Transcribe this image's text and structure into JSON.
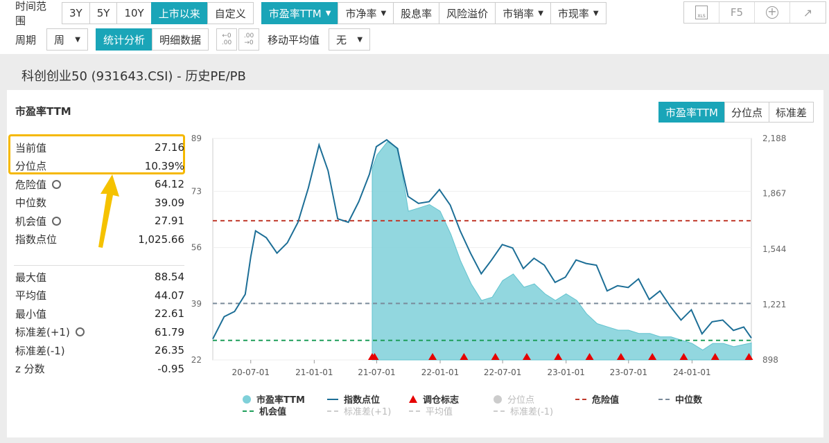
{
  "toolbar": {
    "range_label": "时间范围",
    "range_options": [
      "3Y",
      "5Y",
      "10Y",
      "上市以来",
      "自定义"
    ],
    "metrics": [
      "市盈率TTM",
      "市净率",
      "股息率",
      "风险溢价",
      "市销率",
      "市现率"
    ],
    "period_label": "周期",
    "period_value": "周",
    "view_tabs": [
      "统计分析",
      "明细数据"
    ],
    "ma_label": "移动平均值",
    "ma_value": "无",
    "tools": {
      "f5": "F5",
      "xls": "XLS"
    }
  },
  "page_title": "科创创业50 (931643.CSI) - 历史PE/PB",
  "panel": {
    "title": "市盈率TTM",
    "seg_tabs": [
      "市盈率TTM",
      "分位点",
      "标准差"
    ]
  },
  "stats_top": [
    {
      "label": "当前值",
      "value": "27.16",
      "gear": false
    },
    {
      "label": "分位点",
      "value": "10.39%",
      "gear": false
    },
    {
      "label": "危险值",
      "value": "64.12",
      "gear": true
    },
    {
      "label": "中位数",
      "value": "39.09",
      "gear": false
    },
    {
      "label": "机会值",
      "value": "27.91",
      "gear": true
    },
    {
      "label": "指数点位",
      "value": "1,025.66",
      "gear": false
    }
  ],
  "stats_bottom": [
    {
      "label": "最大值",
      "value": "88.54",
      "gear": false
    },
    {
      "label": "平均值",
      "value": "44.07",
      "gear": false
    },
    {
      "label": "最小值",
      "value": "22.61",
      "gear": false
    },
    {
      "label": "标准差(+1)",
      "value": "61.79",
      "gear": true
    },
    {
      "label": "标准差(-1)",
      "value": "26.35",
      "gear": false
    },
    {
      "label": "z 分数",
      "value": "-0.95",
      "gear": false
    }
  ],
  "colors": {
    "accent": "#1aa5b8",
    "pe_fill": "#7fd0d9",
    "index_line": "#1c6e96",
    "danger": "#c0392b",
    "median": "#7a8a9a",
    "opportunity": "#1e9e5a",
    "rebalance": "#e60000",
    "highlight": "#f5b800"
  },
  "chart_data": {
    "type": "line",
    "y_left_ticks": [
      "89",
      "73",
      "56",
      "39",
      "22"
    ],
    "y_left_range": [
      22,
      89
    ],
    "y_right_ticks": [
      "2,188",
      "1,867",
      "1,544",
      "1,221",
      "898"
    ],
    "y_right_range": [
      898,
      2188
    ],
    "x_ticks": [
      "20-07-01",
      "21-01-01",
      "21-07-01",
      "22-01-01",
      "22-07-01",
      "23-01-01",
      "23-07-01",
      "24-01-01"
    ],
    "x_range": [
      "2020-03-13",
      "2024-06-21"
    ],
    "reference_lines": {
      "danger": 64.12,
      "median": 39.09,
      "opportunity": 27.91
    },
    "series": [
      {
        "name": "市盈率TTM",
        "x": [
          "2021-06-18",
          "2021-07-02",
          "2021-08-01",
          "2021-09-01",
          "2021-10-01",
          "2021-11-01",
          "2021-12-01",
          "2022-01-01",
          "2022-02-01",
          "2022-03-01",
          "2022-04-01",
          "2022-05-01",
          "2022-06-01",
          "2022-07-01",
          "2022-08-01",
          "2022-09-01",
          "2022-10-01",
          "2022-11-01",
          "2022-12-01",
          "2023-01-01",
          "2023-02-01",
          "2023-03-01",
          "2023-04-01",
          "2023-05-01",
          "2023-06-01",
          "2023-07-01",
          "2023-08-01",
          "2023-09-01",
          "2023-10-01",
          "2023-11-01",
          "2023-12-01",
          "2024-01-01",
          "2024-02-01",
          "2024-03-01",
          "2024-04-01",
          "2024-05-01",
          "2024-06-21"
        ],
        "values": [
          80,
          84,
          88,
          86,
          67,
          68,
          69,
          67,
          60,
          52,
          45,
          40,
          41,
          46,
          48,
          44,
          45,
          42,
          40,
          42,
          40,
          36,
          33,
          32,
          31,
          31,
          30,
          30,
          29,
          29,
          28,
          27,
          25,
          27,
          27,
          26,
          27.16
        ]
      },
      {
        "name": "指数点位",
        "x": [
          "2020-03-13",
          "2020-04-15",
          "2020-05-15",
          "2020-06-15",
          "2020-07-01",
          "2020-07-15",
          "2020-08-15",
          "2020-09-15",
          "2020-10-15",
          "2020-11-15",
          "2020-12-15",
          "2021-01-15",
          "2021-02-10",
          "2021-03-10",
          "2021-04-10",
          "2021-05-10",
          "2021-06-10",
          "2021-06-30",
          "2021-07-30",
          "2021-08-30",
          "2021-09-30",
          "2021-10-30",
          "2021-11-30",
          "2021-12-30",
          "2022-01-30",
          "2022-02-28",
          "2022-03-30",
          "2022-04-30",
          "2022-05-30",
          "2022-06-30",
          "2022-07-30",
          "2022-08-30",
          "2022-09-30",
          "2022-10-30",
          "2022-11-30",
          "2022-12-30",
          "2023-01-30",
          "2023-02-28",
          "2023-03-30",
          "2023-04-30",
          "2023-05-30",
          "2023-06-30",
          "2023-07-30",
          "2023-08-30",
          "2023-09-30",
          "2023-10-30",
          "2023-11-30",
          "2023-12-30",
          "2024-01-30",
          "2024-02-28",
          "2024-03-30",
          "2024-04-30",
          "2024-05-30",
          "2024-06-21"
        ],
        "values": [
          1020,
          1150,
          1180,
          1280,
          1500,
          1650,
          1610,
          1520,
          1580,
          1700,
          1900,
          2150,
          2000,
          1720,
          1700,
          1820,
          1980,
          2140,
          2180,
          2130,
          1850,
          1810,
          1820,
          1890,
          1800,
          1650,
          1520,
          1400,
          1480,
          1570,
          1550,
          1430,
          1490,
          1450,
          1350,
          1380,
          1480,
          1460,
          1450,
          1300,
          1330,
          1320,
          1370,
          1250,
          1300,
          1210,
          1130,
          1190,
          1050,
          1120,
          1130,
          1070,
          1090,
          1025.66
        ]
      }
    ],
    "rebalance_markers": [
      "2021-06-18",
      "2021-06-25",
      "2021-12-10",
      "2022-03-11",
      "2022-06-10",
      "2022-09-09",
      "2022-12-09",
      "2023-03-10",
      "2023-06-09",
      "2023-09-08",
      "2023-12-08",
      "2024-03-08",
      "2024-06-14"
    ],
    "legend": {
      "items": [
        "市盈率TTM",
        "指数点位",
        "调仓标志",
        "分位点",
        "危险值",
        "中位数",
        "机会值",
        "标准差(+1)",
        "平均值",
        "标准差(-1)"
      ]
    }
  }
}
